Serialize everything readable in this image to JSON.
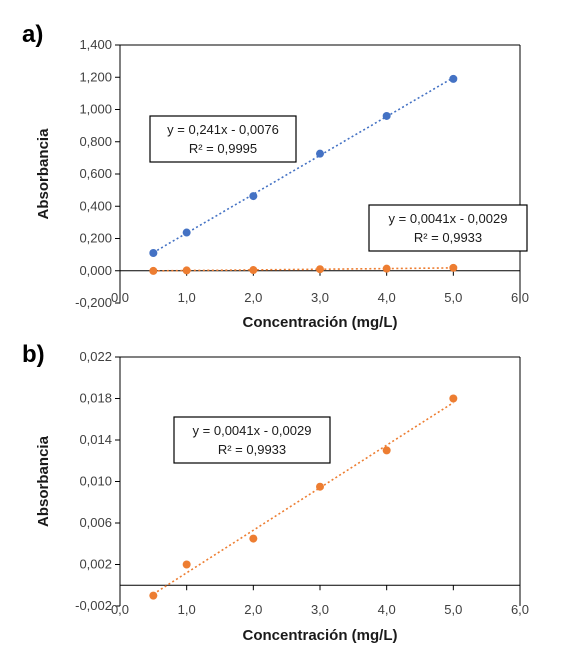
{
  "chart_data": [
    {
      "type": "scatter",
      "panel_label": "a)",
      "xlabel": "Concentración (mg/L)",
      "ylabel": "Absorbancia",
      "xlim": [
        0,
        6
      ],
      "ylim": [
        -0.2,
        1.4
      ],
      "x_ticks": [
        "0,0",
        "1,0",
        "2,0",
        "3,0",
        "4,0",
        "5,0",
        "6,0"
      ],
      "y_ticks": [
        "-0,200",
        "0,000",
        "0,200",
        "0,400",
        "0,600",
        "0,800",
        "1,000",
        "1,200",
        "1,400"
      ],
      "grid": false,
      "series": [
        {
          "color": "#4472C4",
          "x": [
            0.5,
            1,
            2,
            3,
            4,
            5
          ],
          "y": [
            0.11,
            0.237,
            0.463,
            0.726,
            0.96,
            1.19
          ],
          "trendline": {
            "slope": 0.241,
            "intercept": -0.0076
          },
          "annotation": [
            "y = 0,241x - 0,0076",
            "R² = 0,9995"
          ]
        },
        {
          "color": "#ED7D31",
          "x": [
            0.5,
            1,
            2,
            3,
            4,
            5
          ],
          "y": [
            -0.001,
            0.002,
            0.0045,
            0.0095,
            0.013,
            0.018
          ],
          "trendline": {
            "slope": 0.0041,
            "intercept": -0.0029
          },
          "annotation": [
            "y = 0,0041x - 0,0029",
            "R² = 0,9933"
          ]
        }
      ]
    },
    {
      "type": "scatter",
      "panel_label": "b)",
      "xlabel": "Concentración (mg/L)",
      "ylabel": "Absorbancia",
      "xlim": [
        0,
        6
      ],
      "ylim": [
        -0.002,
        0.022
      ],
      "x_ticks": [
        "0,0",
        "1,0",
        "2,0",
        "3,0",
        "4,0",
        "5,0",
        "6,0"
      ],
      "y_ticks": [
        "-0,002",
        "0,002",
        "0,006",
        "0,010",
        "0,014",
        "0,018",
        "0,022"
      ],
      "grid": false,
      "series": [
        {
          "color": "#ED7D31",
          "x": [
            0.5,
            1,
            2,
            3,
            4,
            5
          ],
          "y": [
            -0.001,
            0.002,
            0.0045,
            0.0095,
            0.013,
            0.018
          ],
          "trendline": {
            "slope": 0.0041,
            "intercept": -0.0029
          },
          "annotation": [
            "y = 0,0041x - 0,0029",
            "R² = 0,9933"
          ]
        }
      ]
    }
  ]
}
